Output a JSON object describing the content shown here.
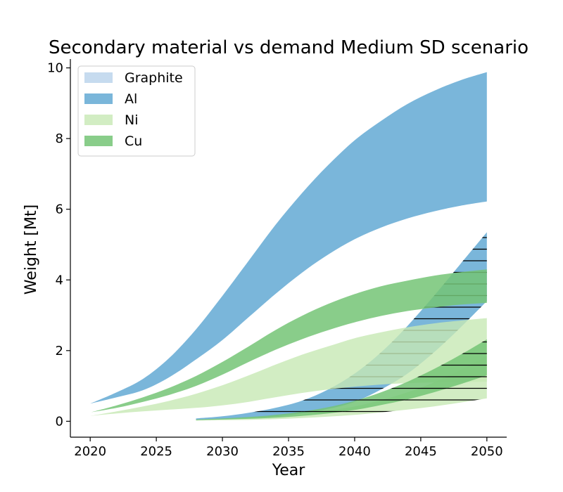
{
  "chart_data": {
    "type": "area",
    "title": "Secondary material vs demand Medium SD scenario",
    "xlabel": "Year",
    "ylabel": "Weight [Mt]",
    "xlim": [
      2018.5,
      2051.5
    ],
    "ylim": [
      -0.45,
      10.25
    ],
    "xticks": [
      2020,
      2025,
      2030,
      2035,
      2040,
      2045,
      2050
    ],
    "yticks": [
      0,
      2,
      4,
      6,
      8,
      10
    ],
    "legend_position": "top-left",
    "grid": false,
    "x": [
      2020,
      2022,
      2024,
      2026,
      2028,
      2030,
      2032,
      2034,
      2036,
      2038,
      2040,
      2042,
      2044,
      2046,
      2048,
      2050
    ],
    "series": [
      {
        "name": "Graphite",
        "color": "#c6dbef",
        "bands": []
      },
      {
        "name": "Al",
        "color": "#6baed6",
        "opacity": 0.9,
        "bands": [
          {
            "kind": "demand",
            "lower": [
              0.5,
              0.68,
              0.88,
              1.25,
              1.75,
              2.3,
              2.95,
              3.6,
              4.2,
              4.72,
              5.15,
              5.48,
              5.74,
              5.94,
              6.1,
              6.22
            ],
            "upper": [
              0.5,
              0.82,
              1.2,
              1.8,
              2.6,
              3.55,
              4.55,
              5.55,
              6.45,
              7.25,
              7.95,
              8.5,
              8.98,
              9.35,
              9.65,
              9.88
            ]
          },
          {
            "kind": "secondary",
            "hatched": true,
            "x": [
              2028,
              2030,
              2032,
              2034,
              2036,
              2038,
              2040,
              2042,
              2044,
              2046,
              2048,
              2050
            ],
            "lower": [
              0.04,
              0.06,
              0.09,
              0.14,
              0.22,
              0.35,
              0.55,
              0.9,
              1.35,
              1.95,
              2.65,
              3.4
            ],
            "upper": [
              0.08,
              0.14,
              0.24,
              0.38,
              0.58,
              0.9,
              1.35,
              1.95,
              2.7,
              3.55,
              4.45,
              5.35
            ]
          }
        ]
      },
      {
        "name": "Ni",
        "color": "#c7e9b4",
        "opacity": 0.8,
        "bands": [
          {
            "kind": "demand",
            "lower": [
              0.15,
              0.22,
              0.28,
              0.33,
              0.38,
              0.45,
              0.55,
              0.68,
              0.8,
              0.9,
              0.98,
              1.04,
              1.08,
              1.1,
              1.11,
              1.12
            ],
            "upper": [
              0.15,
              0.28,
              0.42,
              0.58,
              0.78,
              1.02,
              1.3,
              1.6,
              1.88,
              2.12,
              2.35,
              2.52,
              2.66,
              2.77,
              2.85,
              2.92
            ]
          },
          {
            "kind": "secondary",
            "hatched": true,
            "x": [
              2028,
              2030,
              2032,
              2034,
              2036,
              2038,
              2040,
              2042,
              2044,
              2046,
              2048,
              2050
            ],
            "lower": [
              0.02,
              0.03,
              0.04,
              0.06,
              0.09,
              0.13,
              0.18,
              0.25,
              0.33,
              0.42,
              0.53,
              0.65
            ],
            "upper": [
              0.04,
              0.06,
              0.1,
              0.14,
              0.2,
              0.3,
              0.42,
              0.6,
              0.82,
              1.1,
              1.45,
              1.85
            ]
          }
        ]
      },
      {
        "name": "Cu",
        "color": "#74c476",
        "opacity": 0.85,
        "bands": [
          {
            "kind": "demand",
            "lower": [
              0.25,
              0.38,
              0.55,
              0.75,
              1.0,
              1.32,
              1.68,
              2.02,
              2.32,
              2.58,
              2.8,
              2.98,
              3.12,
              3.22,
              3.3,
              3.35
            ],
            "upper": [
              0.25,
              0.45,
              0.68,
              0.95,
              1.28,
              1.68,
              2.12,
              2.58,
              2.98,
              3.32,
              3.6,
              3.82,
              3.98,
              4.12,
              4.22,
              4.3
            ]
          },
          {
            "kind": "secondary",
            "hatched": true,
            "x": [
              2028,
              2030,
              2032,
              2034,
              2036,
              2038,
              2040,
              2042,
              2044,
              2046,
              2048,
              2050
            ],
            "lower": [
              0.03,
              0.05,
              0.07,
              0.1,
              0.15,
              0.22,
              0.32,
              0.46,
              0.62,
              0.82,
              1.05,
              1.3
            ],
            "upper": [
              0.05,
              0.08,
              0.12,
              0.18,
              0.27,
              0.4,
              0.58,
              0.82,
              1.12,
              1.48,
              1.88,
              2.32
            ]
          }
        ]
      }
    ]
  }
}
